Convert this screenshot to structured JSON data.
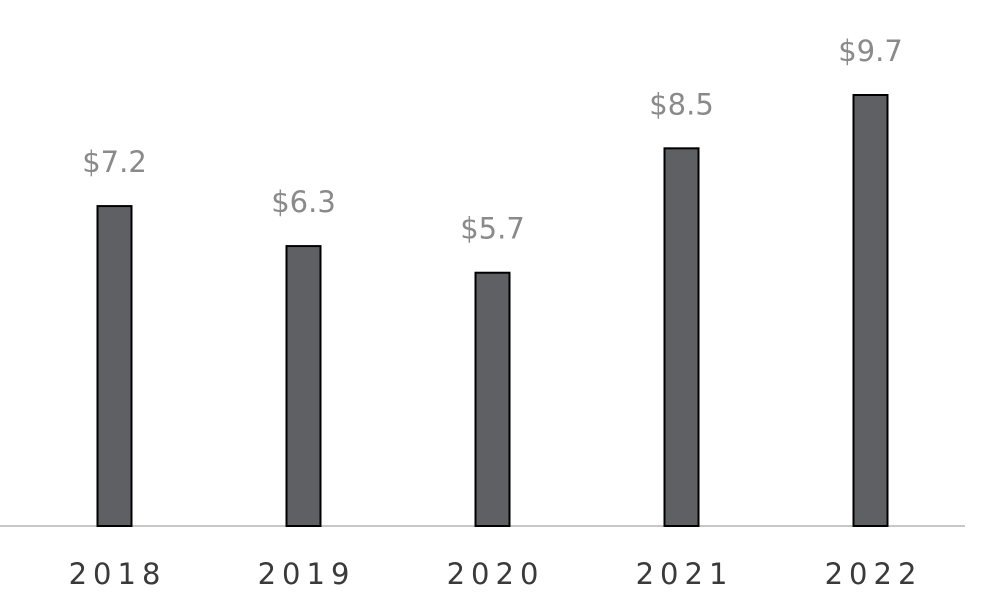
{
  "chart_data": {
    "type": "bar",
    "categories": [
      "2018",
      "2019",
      "2020",
      "2021",
      "2022"
    ],
    "values": [
      7.2,
      6.3,
      5.7,
      8.5,
      9.7
    ],
    "value_labels": [
      "$7.2",
      "$6.3",
      "$5.7",
      "$8.5",
      "$9.7"
    ],
    "color": "#5f6064"
  }
}
